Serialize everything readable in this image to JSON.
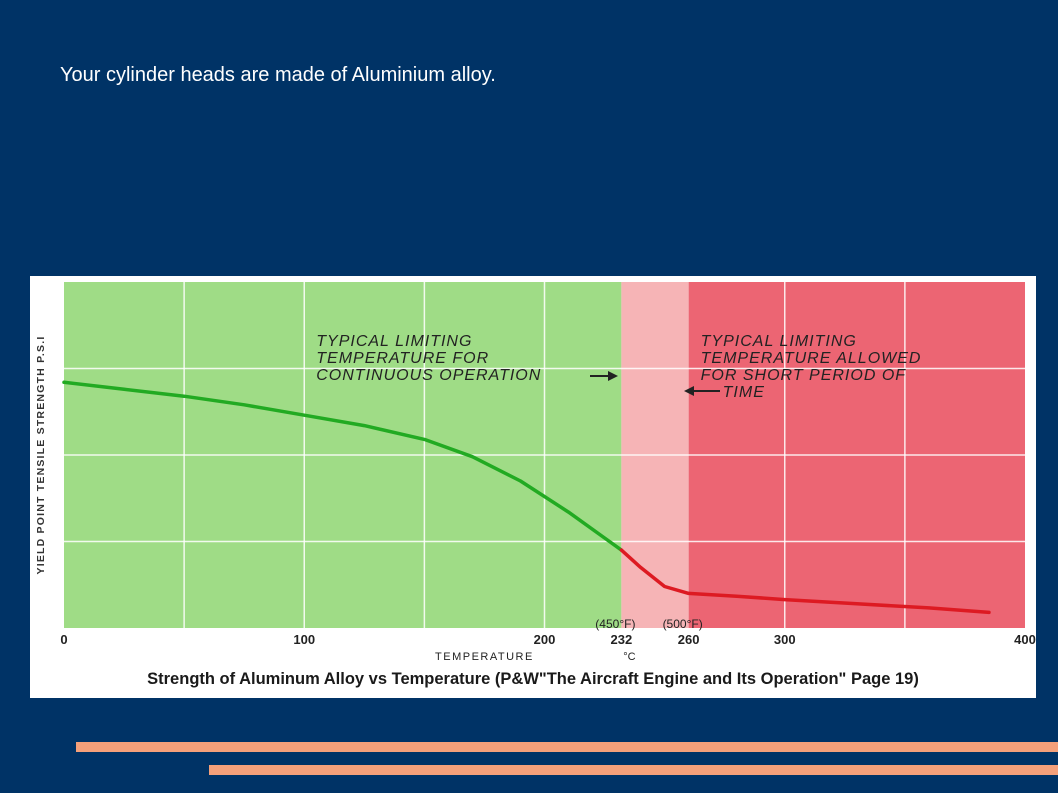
{
  "slide": {
    "text": "Your cylinder heads are made of Aluminium alloy.",
    "accent_color": "#f4a07a",
    "background_color": "#003366"
  },
  "chart_data": {
    "type": "line",
    "caption": "Strength of Aluminum Alloy vs Temperature (P&W\"The Aircraft Engine and Its Operation\" Page 19)",
    "xlabel": "TEMPERATURE",
    "xunit": "°C",
    "ylabel": "YIELD POINT TENSILE STRENGTH P.S.I",
    "xlim": [
      0,
      400
    ],
    "grid": true,
    "x_ticks": [
      {
        "value": 0,
        "label": "0"
      },
      {
        "value": 100,
        "label": "100"
      },
      {
        "value": 200,
        "label": "200"
      },
      {
        "value": 232,
        "label": "232"
      },
      {
        "value": 260,
        "label": "260"
      },
      {
        "value": 300,
        "label": "300"
      },
      {
        "value": 400,
        "label": "400"
      }
    ],
    "fahrenheit_labels": [
      {
        "value": 232,
        "label": "(450°F)"
      },
      {
        "value": 260,
        "label": "(500°F)"
      }
    ],
    "regions": [
      {
        "from": 0,
        "to": 232,
        "color": "#9fdc86"
      },
      {
        "from": 232,
        "to": 260,
        "color": "#f6b4b6"
      },
      {
        "from": 260,
        "to": 400,
        "color": "#ec6573"
      }
    ],
    "annotations": [
      {
        "lines": [
          "TYPICAL LIMITING",
          "TEMPERATURE FOR",
          "CONTINUOUS OPERATION"
        ]
      },
      {
        "lines": [
          "TYPICAL LIMITING",
          "TEMPERATURE ALLOWED",
          "FOR SHORT PERIOD OF",
          "TIME"
        ]
      }
    ],
    "series": [
      {
        "color": "#22aa22",
        "points": [
          [
            0,
            0.71
          ],
          [
            25,
            0.69
          ],
          [
            50,
            0.67
          ],
          [
            75,
            0.645
          ],
          [
            100,
            0.615
          ],
          [
            125,
            0.585
          ],
          [
            150,
            0.545
          ],
          [
            170,
            0.495
          ],
          [
            190,
            0.425
          ],
          [
            210,
            0.335
          ],
          [
            225,
            0.26
          ],
          [
            232,
            0.225
          ]
        ]
      },
      {
        "color": "#dd1a22",
        "points": [
          [
            232,
            0.225
          ],
          [
            240,
            0.175
          ],
          [
            250,
            0.12
          ],
          [
            260,
            0.1
          ],
          [
            280,
            0.092
          ],
          [
            300,
            0.082
          ],
          [
            330,
            0.07
          ],
          [
            360,
            0.058
          ],
          [
            385,
            0.045
          ]
        ]
      }
    ]
  }
}
